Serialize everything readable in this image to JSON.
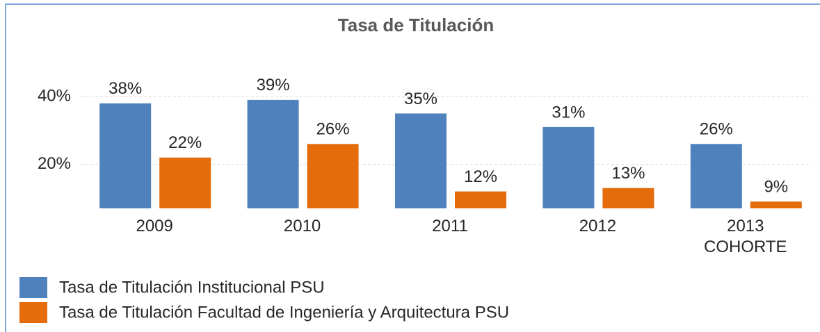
{
  "chart_data": {
    "type": "bar",
    "title": "Tasa de Titulación",
    "categories": [
      "2009",
      "2010",
      "2011",
      "2012",
      "2013 COHORTE"
    ],
    "series": [
      {
        "name": "Tasa de Titulación Institucional PSU",
        "color": "#4f81bd",
        "values": [
          38,
          39,
          35,
          31,
          26
        ],
        "value_labels": [
          "38%",
          "39%",
          "35%",
          "31%",
          "26%"
        ]
      },
      {
        "name": "Tasa de Titulación Facultad de Ingeniería y Arquitectura PSU",
        "color": "#e46c0a",
        "values": [
          22,
          26,
          12,
          13,
          9
        ],
        "value_labels": [
          "22%",
          "26%",
          "12%",
          "13%",
          "9%"
        ]
      }
    ],
    "ylim": [
      7,
      48
    ],
    "yticks": [
      {
        "value": 20,
        "label": "20%"
      },
      {
        "value": 40,
        "label": "40%"
      }
    ],
    "grid": true,
    "legend": "bottom"
  }
}
